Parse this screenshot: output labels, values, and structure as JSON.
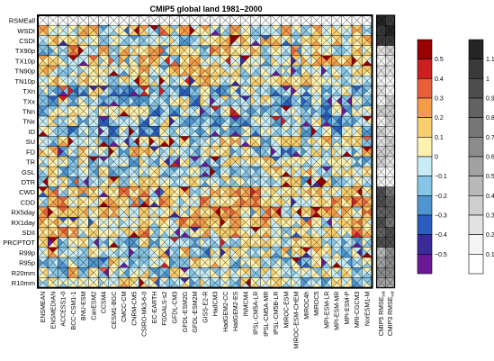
{
  "chart_data": {
    "type": "heatmap",
    "title": "CMIP5 global land 1981–2000",
    "rows": [
      "RSMEall",
      "WSDI",
      "CSDI",
      "TX90p",
      "TX10p",
      "TN90p",
      "TN10p",
      "TXn",
      "TXx",
      "TNn",
      "TNx",
      "ID",
      "SU",
      "FD",
      "TR",
      "GSL",
      "DTR",
      "CWD",
      "CDD",
      "RX5day",
      "RX1day",
      "SDII",
      "PRCPTOT",
      "R99p",
      "R95p",
      "R20mm",
      "R10mm"
    ],
    "columns": [
      "ENSMEAN",
      "ENSMEDIAN",
      "ACCESS1-0",
      "BCC-CSM1-1",
      "BNU-ESM",
      "CanESM2",
      "CCSM4",
      "CESM1-BGC",
      "CMCC-CM",
      "CNRM-CM5",
      "CSIRO-Mk3-6-0",
      "EC-EARTH",
      "FGOALS-s2",
      "GFDL-CM3",
      "GFDL-ESM2G",
      "GFDL-ESM2M",
      "GISS-E2-R",
      "HadCM3",
      "HadGEM2-CC",
      "HadGEM2-ES",
      "INMCM4",
      "IPSL-CM5A-LR",
      "IPSL-CM5A-MR",
      "IPSL-CM5B-LR",
      "MIROC-ESM",
      "MIROC-ESM-CHEM",
      "MIROC4h",
      "MIROC5",
      "MPI-ESM-LR",
      "MPI-ESM-MR",
      "MPI-ESM-P",
      "MRI-CGCM3",
      "NorESM1-M"
    ],
    "rmse_columns": [
      "CMIP5 RMSE",
      "CMIP3 RMSE"
    ],
    "rmse_subscripts": [
      "std",
      "std"
    ],
    "legend1": {
      "ticks": [
        "0.5",
        "0.4",
        "0.3",
        "0.2",
        "0.1",
        "0",
        "−0.1",
        "−0.2",
        "−0.3",
        "−0.4",
        "−0.5"
      ],
      "colors": [
        "#990000",
        "#cc1f1f",
        "#e8603a",
        "#f59c4a",
        "#f8cf6f",
        "#fff2b0",
        "#c8ecf5",
        "#87c5e6",
        "#4f96d0",
        "#2b5dbd",
        "#3b2a9a",
        "#6a1a96"
      ]
    },
    "legend2": {
      "ticks": [
        "1.1",
        "1",
        "0.9",
        "0.8",
        "0.7",
        "0.6",
        "0.5",
        "0.4",
        "0.3",
        "0.2",
        "0.1"
      ],
      "colors": [
        "#252525",
        "#3a3a3a",
        "#4e4e4e",
        "#626262",
        "#767676",
        "#8c8c8c",
        "#a2a2a2",
        "#b8b8b8",
        "#cecece",
        "#e2e2e2",
        "#f5f5f5",
        "#ffffff"
      ]
    }
  }
}
